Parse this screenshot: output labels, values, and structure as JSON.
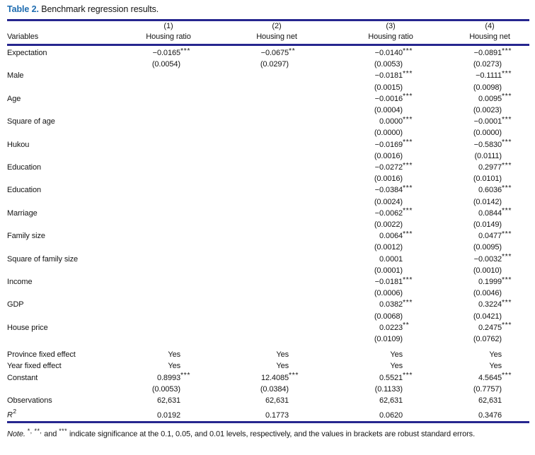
{
  "caption": {
    "label": "Table 2.",
    "text": "Benchmark regression results."
  },
  "header": {
    "variables_label": "Variables",
    "columns": [
      {
        "number": "(1)",
        "name": "Housing ratio"
      },
      {
        "number": "(2)",
        "name": "Housing net"
      },
      {
        "number": "(3)",
        "name": "Housing ratio"
      },
      {
        "number": "(4)",
        "name": "Housing net"
      }
    ]
  },
  "rows": [
    {
      "label": "Expectation",
      "kind": "coef",
      "cells": [
        {
          "v": "−0.0165",
          "s": "***"
        },
        {
          "v": "−0.0675",
          "s": "**"
        },
        {
          "v": "−0.0140",
          "s": "***"
        },
        {
          "v": "−0.0891",
          "s": "***"
        }
      ]
    },
    {
      "label": "",
      "kind": "se",
      "cells": [
        {
          "v": "(0.0054)"
        },
        {
          "v": "(0.0297)"
        },
        {
          "v": "(0.0053)"
        },
        {
          "v": "(0.0273)"
        }
      ]
    },
    {
      "label": "Male",
      "kind": "coef",
      "cells": [
        null,
        null,
        {
          "v": "−0.0181",
          "s": "***"
        },
        {
          "v": "−0.1111",
          "s": "***"
        }
      ]
    },
    {
      "label": "",
      "kind": "se",
      "cells": [
        null,
        null,
        {
          "v": "(0.0015)"
        },
        {
          "v": "(0.0098)"
        }
      ]
    },
    {
      "label": "Age",
      "kind": "coef",
      "cells": [
        null,
        null,
        {
          "v": "−0.0016",
          "s": "***"
        },
        {
          "v": "0.0095",
          "s": "***"
        }
      ]
    },
    {
      "label": "",
      "kind": "se",
      "cells": [
        null,
        null,
        {
          "v": "(0.0004)"
        },
        {
          "v": "(0.0023)"
        }
      ]
    },
    {
      "label": "Square of age",
      "kind": "coef",
      "cells": [
        null,
        null,
        {
          "v": "0.0000",
          "s": "***"
        },
        {
          "v": "−0.0001",
          "s": "***"
        }
      ]
    },
    {
      "label": "",
      "kind": "se",
      "cells": [
        null,
        null,
        {
          "v": "(0.0000)"
        },
        {
          "v": "(0.0000)"
        }
      ]
    },
    {
      "label": "Hukou",
      "kind": "coef",
      "cells": [
        null,
        null,
        {
          "v": "−0.0169",
          "s": "***"
        },
        {
          "v": "−0.5830",
          "s": "***"
        }
      ]
    },
    {
      "label": "",
      "kind": "se",
      "cells": [
        null,
        null,
        {
          "v": "(0.0016)"
        },
        {
          "v": "(0.0111)"
        }
      ]
    },
    {
      "label": "Education",
      "kind": "coef",
      "cells": [
        null,
        null,
        {
          "v": "−0.0272",
          "s": "***"
        },
        {
          "v": "0.2977",
          "s": "***"
        }
      ]
    },
    {
      "label": "",
      "kind": "se",
      "cells": [
        null,
        null,
        {
          "v": "(0.0016)"
        },
        {
          "v": "(0.0101)"
        }
      ]
    },
    {
      "label": "Education",
      "kind": "coef",
      "cells": [
        null,
        null,
        {
          "v": "−0.0384",
          "s": "***"
        },
        {
          "v": "0.6036",
          "s": "***"
        }
      ]
    },
    {
      "label": "",
      "kind": "se",
      "cells": [
        null,
        null,
        {
          "v": "(0.0024)"
        },
        {
          "v": "(0.0142)"
        }
      ]
    },
    {
      "label": "Marriage",
      "kind": "coef",
      "cells": [
        null,
        null,
        {
          "v": "−0.0062",
          "s": "***"
        },
        {
          "v": "0.0844",
          "s": "***"
        }
      ]
    },
    {
      "label": "",
      "kind": "se",
      "cells": [
        null,
        null,
        {
          "v": "(0.0022)"
        },
        {
          "v": "(0.0149)"
        }
      ]
    },
    {
      "label": "Family size",
      "kind": "coef",
      "cells": [
        null,
        null,
        {
          "v": "0.0064",
          "s": "***"
        },
        {
          "v": "0.0477",
          "s": "***"
        }
      ]
    },
    {
      "label": "",
      "kind": "se",
      "cells": [
        null,
        null,
        {
          "v": "(0.0012)"
        },
        {
          "v": "(0.0095)"
        }
      ]
    },
    {
      "label": "Square of family size",
      "kind": "coef",
      "cells": [
        null,
        null,
        {
          "v": "0.0001"
        },
        {
          "v": "−0.0032",
          "s": "***"
        }
      ]
    },
    {
      "label": "",
      "kind": "se",
      "cells": [
        null,
        null,
        {
          "v": "(0.0001)"
        },
        {
          "v": "(0.0010)"
        }
      ]
    },
    {
      "label": "Income",
      "kind": "coef",
      "cells": [
        null,
        null,
        {
          "v": "−0.0181",
          "s": "***"
        },
        {
          "v": "0.1999",
          "s": "***"
        }
      ]
    },
    {
      "label": "",
      "kind": "se",
      "cells": [
        null,
        null,
        {
          "v": "(0.0006)"
        },
        {
          "v": "(0.0046)"
        }
      ]
    },
    {
      "label": "GDP",
      "kind": "coef",
      "cells": [
        null,
        null,
        {
          "v": "0.0382",
          "s": "***"
        },
        {
          "v": "0.3224",
          "s": "***"
        }
      ]
    },
    {
      "label": "",
      "kind": "se",
      "cells": [
        null,
        null,
        {
          "v": "(0.0068)"
        },
        {
          "v": "(0.0421)"
        }
      ]
    },
    {
      "label": "House price",
      "kind": "coef",
      "cells": [
        null,
        null,
        {
          "v": "0.0223",
          "s": "**"
        },
        {
          "v": "0.2475",
          "s": "***"
        }
      ]
    },
    {
      "label": "",
      "kind": "se",
      "cells": [
        null,
        null,
        {
          "v": "(0.0109)"
        },
        {
          "v": "(0.0762)"
        }
      ]
    },
    {
      "label": "Province fixed effect",
      "kind": "coef",
      "gap_before": true,
      "cells": [
        {
          "v": "Yes"
        },
        {
          "v": "Yes"
        },
        {
          "v": "Yes"
        },
        {
          "v": "Yes"
        }
      ]
    },
    {
      "label": "Year fixed effect",
      "kind": "coef",
      "cells": [
        {
          "v": "Yes"
        },
        {
          "v": "Yes"
        },
        {
          "v": "Yes"
        },
        {
          "v": "Yes"
        }
      ]
    },
    {
      "label": "Constant",
      "kind": "coef",
      "cells": [
        {
          "v": "0.8993",
          "s": "***"
        },
        {
          "v": "12.4085",
          "s": "***"
        },
        {
          "v": "0.5521",
          "s": "***"
        },
        {
          "v": "4.5645",
          "s": "***"
        }
      ]
    },
    {
      "label": "",
      "kind": "se",
      "cells": [
        {
          "v": "(0.0053)"
        },
        {
          "v": "(0.0384)"
        },
        {
          "v": "(0.1133)"
        },
        {
          "v": "(0.7757)"
        }
      ]
    },
    {
      "label": "Observations",
      "kind": "coef",
      "cells": [
        {
          "v": "62,631"
        },
        {
          "v": "62,631"
        },
        {
          "v": "62,631"
        },
        {
          "v": "62,631"
        }
      ]
    },
    {
      "label": "R",
      "label_sup": "2",
      "label_italic": true,
      "kind": "coef",
      "cells": [
        {
          "v": "0.0192"
        },
        {
          "v": "0.1773"
        },
        {
          "v": "0.0620"
        },
        {
          "v": "0.3476"
        }
      ]
    }
  ],
  "note": {
    "lead": "Note.",
    "star1": "*,",
    "star2": "**,",
    "and": "and",
    "star3": "***",
    "text": "indicate significance at the 0.1, 0.05, and 0.01 levels, respectively, and the values in brackets are robust standard errors."
  }
}
